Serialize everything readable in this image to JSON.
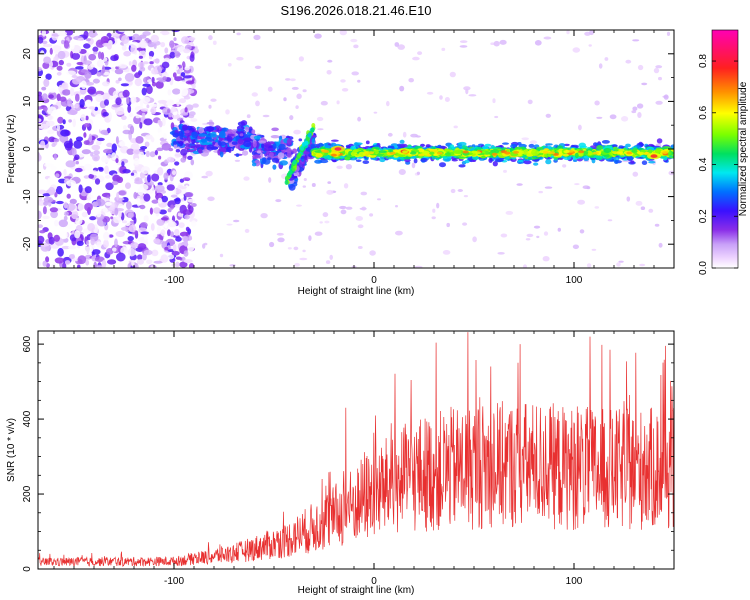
{
  "figure_title": "S196.2026.018.21.46.E10",
  "chart_data": [
    {
      "type": "heatmap",
      "title": "S196.2026.018.21.46.E10",
      "xlabel": "Height of straight line (km)",
      "ylabel": "Frequency (Hz)",
      "xlim": [
        -168,
        150
      ],
      "ylim": [
        -25,
        25
      ],
      "xticks": [
        -100,
        0,
        100
      ],
      "yticks": [
        -20,
        -10,
        0,
        10,
        20
      ],
      "colorbar": {
        "label": "Normalized spectral amplitude",
        "range": [
          0,
          0.92
        ],
        "ticks": [
          0.0,
          0.2,
          0.4,
          0.6,
          0.8
        ]
      },
      "regions": [
        {
          "name": "noise",
          "x_from": -168,
          "x_to": -100,
          "f_from": -25,
          "f_to": 25,
          "amplitude": 0.12
        },
        {
          "name": "early signal",
          "x_from": -100,
          "x_to": -30,
          "f_from": -8,
          "f_to": 9,
          "amplitude": 0.3
        },
        {
          "name": "tone",
          "x_from": -30,
          "x_to": 150,
          "f_center": -0.8,
          "f_width": 2.5,
          "amplitude": 0.7
        }
      ],
      "peaks": [
        {
          "x": -18,
          "f": 0,
          "amplitude": 0.9
        },
        {
          "x": 15,
          "f": -0.5,
          "amplitude": 0.85
        },
        {
          "x": 140,
          "f": -1.5,
          "amplitude": 0.85
        }
      ]
    },
    {
      "type": "line",
      "xlabel": "Height of straight line (km)",
      "ylabel": "SNR (10 * v/v)",
      "xlim": [
        -168,
        150
      ],
      "ylim": [
        0,
        635
      ],
      "xticks": [
        -100,
        0,
        100
      ],
      "yticks": [
        0,
        200,
        400,
        600
      ],
      "series": [
        {
          "name": "SNR",
          "color": "#e83030",
          "envelope": {
            "x": [
              -168,
              -100,
              -70,
              -45,
              -30,
              -20,
              0,
              20,
              40,
              60,
              80,
              100,
              120,
              150
            ],
            "y": [
              20,
              22,
              45,
              80,
              120,
              150,
              220,
              270,
              290,
              300,
              300,
              290,
              285,
              290
            ]
          },
          "peaks": [
            {
              "x": 47,
              "y": 632
            },
            {
              "x": 73,
              "y": 600
            },
            {
              "x": 108,
              "y": 620
            },
            {
              "x": 118,
              "y": 585
            },
            {
              "x": -14,
              "y": 430
            },
            {
              "x": -26,
              "y": 240
            }
          ]
        }
      ]
    }
  ]
}
